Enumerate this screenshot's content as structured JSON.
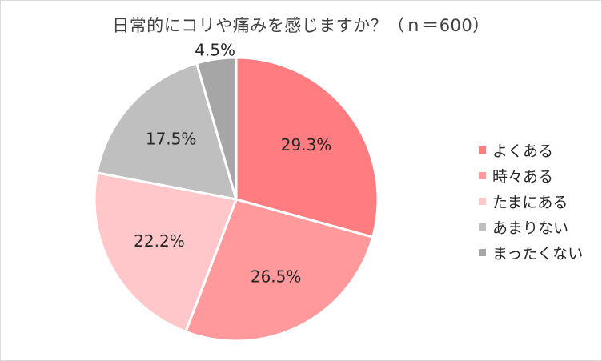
{
  "chart_data": {
    "type": "pie",
    "title": "日常的にコリや痛みを感じますか？（ｎ＝600）",
    "categories": [
      "よくある",
      "時々ある",
      "たまにある",
      "あまりない",
      "まったくない"
    ],
    "values": [
      29.3,
      26.5,
      22.2,
      17.5,
      4.5
    ],
    "value_labels": [
      "29.3%",
      "26.5%",
      "22.2%",
      "17.5%",
      "4.5%"
    ],
    "colors": [
      "#ff7c80",
      "#ff999c",
      "#ffc7c9",
      "#bfbfbf",
      "#a6a6a6"
    ],
    "legend_position": "right",
    "start_angle": "12 o'clock",
    "direction": "clockwise"
  }
}
